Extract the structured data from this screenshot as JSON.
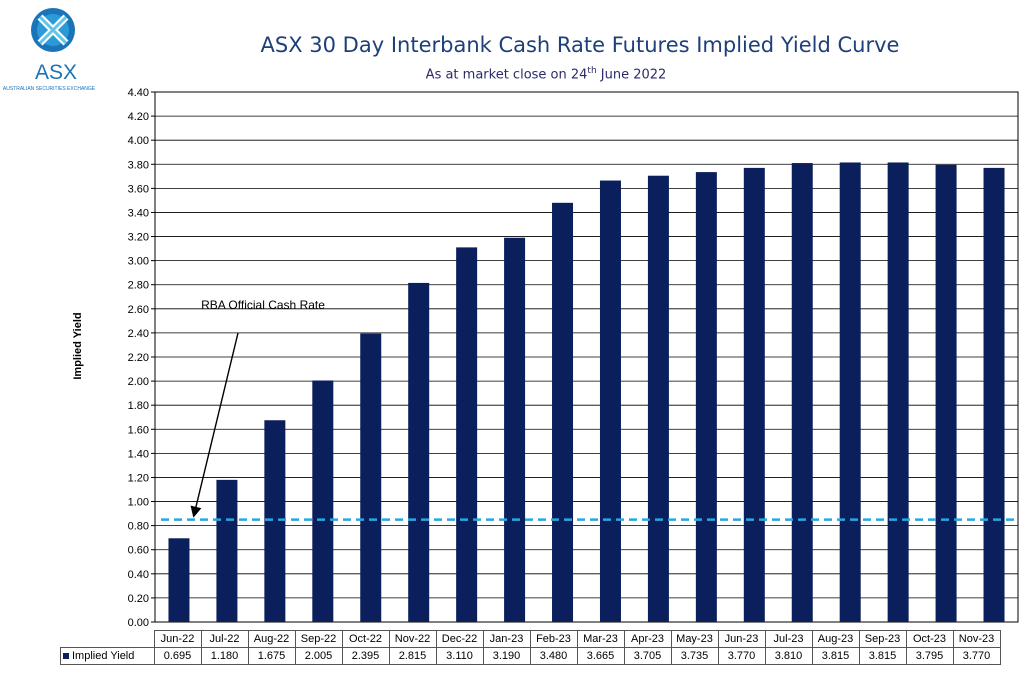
{
  "logo": {
    "name": "ASX",
    "tagline": "AUSTRALIAN SECURITIES EXCHANGE",
    "colors": [
      "#1a74b8",
      "#2c9ad6",
      "#5cc6ec"
    ]
  },
  "chart_data": {
    "type": "bar",
    "title": "ASX 30 Day Interbank Cash Rate Futures Implied Yield Curve",
    "subtitle_prefix": "As at market close on 24",
    "subtitle_sup": "th",
    "subtitle_suffix": " June 2022",
    "ylabel": "Implied Yield",
    "ylim": [
      0,
      4.4
    ],
    "ytick_step": 0.2,
    "categories": [
      "Jun-22",
      "Jul-22",
      "Aug-22",
      "Sep-22",
      "Oct-22",
      "Nov-22",
      "Dec-22",
      "Jan-23",
      "Feb-23",
      "Mar-23",
      "Apr-23",
      "May-23",
      "Jun-23",
      "Jul-23",
      "Aug-23",
      "Sep-23",
      "Oct-23",
      "Nov-23"
    ],
    "series": [
      {
        "name": "Implied Yield",
        "values": [
          0.695,
          1.18,
          1.675,
          2.005,
          2.395,
          2.815,
          3.11,
          3.19,
          3.48,
          3.665,
          3.705,
          3.735,
          3.77,
          3.81,
          3.815,
          3.815,
          3.795,
          3.77
        ],
        "labels": [
          "0.695",
          "1.180",
          "1.675",
          "2.005",
          "2.395",
          "2.815",
          "3.110",
          "3.190",
          "3.480",
          "3.665",
          "3.705",
          "3.735",
          "3.770",
          "3.810",
          "3.815",
          "3.815",
          "3.795",
          "3.770"
        ],
        "color": "#0b1f5c"
      }
    ],
    "reference_line": {
      "label": "RBA Official Cash Rate",
      "value": 0.85,
      "color": "#29a8e0",
      "style": "dashed"
    },
    "annotation": "RBA Official Cash Rate",
    "grid": true,
    "legend": "data-table"
  }
}
